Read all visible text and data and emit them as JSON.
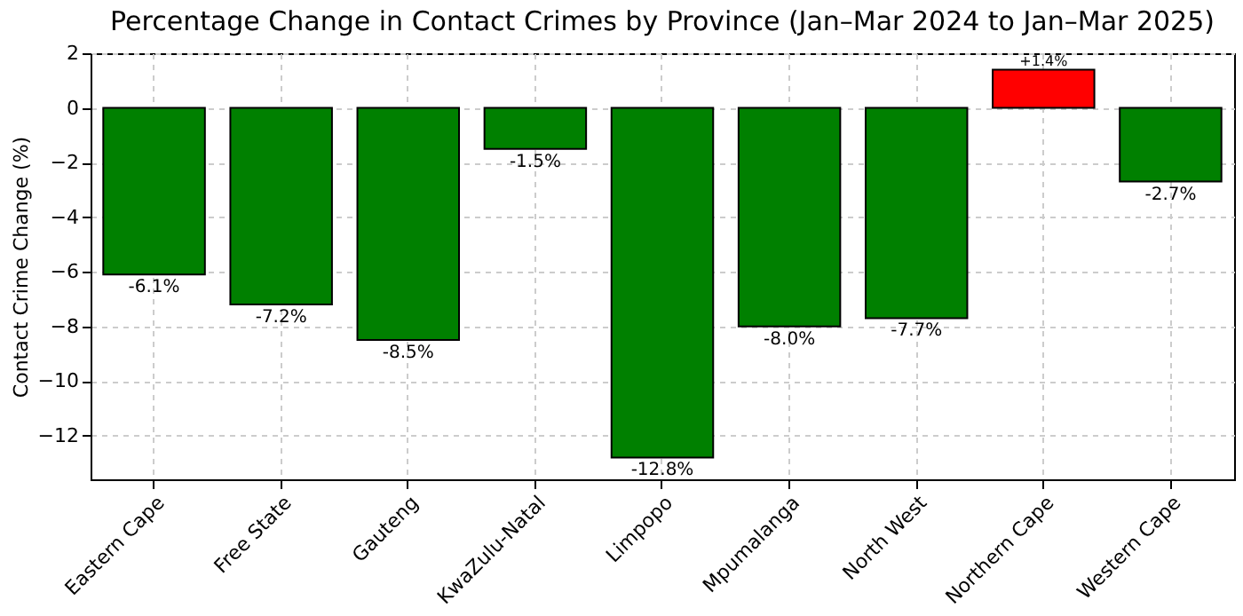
{
  "chart_data": {
    "type": "bar",
    "title": "Percentage Change in Contact Crimes by Province (Jan–Mar 2024 to Jan–Mar 2025)",
    "ylabel": "Contact Crime Change (%)",
    "categories": [
      "Eastern Cape",
      "Free State",
      "Gauteng",
      "KwaZulu-Natal",
      "Limpopo",
      "Mpumalanga",
      "North West",
      "Northern Cape",
      "Western Cape"
    ],
    "values": [
      -6.1,
      -7.2,
      -8.5,
      -1.5,
      -12.8,
      -8.0,
      -7.7,
      1.4,
      -2.7
    ],
    "colors": [
      "#008000",
      "#008000",
      "#008000",
      "#008000",
      "#008000",
      "#008000",
      "#008000",
      "#ff0000",
      "#008000"
    ],
    "value_labels": [
      "-6.1%",
      "-7.2%",
      "-8.5%",
      "-1.5%",
      "-12.8%",
      "-8.0%",
      "-7.7%",
      "+1.4%",
      "-2.7%"
    ],
    "ylim": [
      -13.6,
      2
    ],
    "yticks": [
      -12,
      -10,
      -8,
      -6,
      -4,
      -2,
      0,
      2
    ],
    "grid": true
  }
}
